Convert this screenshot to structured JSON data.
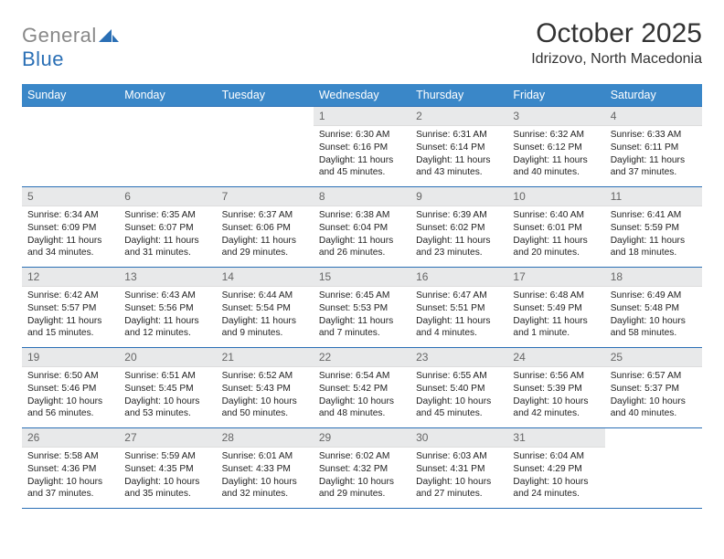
{
  "brand": {
    "word1": "General",
    "word2": "Blue"
  },
  "title": "October 2025",
  "location": "Idrizovo, North Macedonia",
  "colors": {
    "header_bg": "#3a87c8",
    "header_text": "#ffffff",
    "border": "#2a6fb5",
    "daynum_bg": "#e8e9ea",
    "daynum_text": "#666666",
    "body_text": "#222222",
    "logo_gray": "#888888",
    "logo_blue": "#2a6fb5"
  },
  "weekdays": [
    "Sunday",
    "Monday",
    "Tuesday",
    "Wednesday",
    "Thursday",
    "Friday",
    "Saturday"
  ],
  "weeks": [
    [
      {
        "n": "",
        "sr": "",
        "ss": "",
        "dl": ""
      },
      {
        "n": "",
        "sr": "",
        "ss": "",
        "dl": ""
      },
      {
        "n": "",
        "sr": "",
        "ss": "",
        "dl": ""
      },
      {
        "n": "1",
        "sr": "Sunrise: 6:30 AM",
        "ss": "Sunset: 6:16 PM",
        "dl": "Daylight: 11 hours and 45 minutes."
      },
      {
        "n": "2",
        "sr": "Sunrise: 6:31 AM",
        "ss": "Sunset: 6:14 PM",
        "dl": "Daylight: 11 hours and 43 minutes."
      },
      {
        "n": "3",
        "sr": "Sunrise: 6:32 AM",
        "ss": "Sunset: 6:12 PM",
        "dl": "Daylight: 11 hours and 40 minutes."
      },
      {
        "n": "4",
        "sr": "Sunrise: 6:33 AM",
        "ss": "Sunset: 6:11 PM",
        "dl": "Daylight: 11 hours and 37 minutes."
      }
    ],
    [
      {
        "n": "5",
        "sr": "Sunrise: 6:34 AM",
        "ss": "Sunset: 6:09 PM",
        "dl": "Daylight: 11 hours and 34 minutes."
      },
      {
        "n": "6",
        "sr": "Sunrise: 6:35 AM",
        "ss": "Sunset: 6:07 PM",
        "dl": "Daylight: 11 hours and 31 minutes."
      },
      {
        "n": "7",
        "sr": "Sunrise: 6:37 AM",
        "ss": "Sunset: 6:06 PM",
        "dl": "Daylight: 11 hours and 29 minutes."
      },
      {
        "n": "8",
        "sr": "Sunrise: 6:38 AM",
        "ss": "Sunset: 6:04 PM",
        "dl": "Daylight: 11 hours and 26 minutes."
      },
      {
        "n": "9",
        "sr": "Sunrise: 6:39 AM",
        "ss": "Sunset: 6:02 PM",
        "dl": "Daylight: 11 hours and 23 minutes."
      },
      {
        "n": "10",
        "sr": "Sunrise: 6:40 AM",
        "ss": "Sunset: 6:01 PM",
        "dl": "Daylight: 11 hours and 20 minutes."
      },
      {
        "n": "11",
        "sr": "Sunrise: 6:41 AM",
        "ss": "Sunset: 5:59 PM",
        "dl": "Daylight: 11 hours and 18 minutes."
      }
    ],
    [
      {
        "n": "12",
        "sr": "Sunrise: 6:42 AM",
        "ss": "Sunset: 5:57 PM",
        "dl": "Daylight: 11 hours and 15 minutes."
      },
      {
        "n": "13",
        "sr": "Sunrise: 6:43 AM",
        "ss": "Sunset: 5:56 PM",
        "dl": "Daylight: 11 hours and 12 minutes."
      },
      {
        "n": "14",
        "sr": "Sunrise: 6:44 AM",
        "ss": "Sunset: 5:54 PM",
        "dl": "Daylight: 11 hours and 9 minutes."
      },
      {
        "n": "15",
        "sr": "Sunrise: 6:45 AM",
        "ss": "Sunset: 5:53 PM",
        "dl": "Daylight: 11 hours and 7 minutes."
      },
      {
        "n": "16",
        "sr": "Sunrise: 6:47 AM",
        "ss": "Sunset: 5:51 PM",
        "dl": "Daylight: 11 hours and 4 minutes."
      },
      {
        "n": "17",
        "sr": "Sunrise: 6:48 AM",
        "ss": "Sunset: 5:49 PM",
        "dl": "Daylight: 11 hours and 1 minute."
      },
      {
        "n": "18",
        "sr": "Sunrise: 6:49 AM",
        "ss": "Sunset: 5:48 PM",
        "dl": "Daylight: 10 hours and 58 minutes."
      }
    ],
    [
      {
        "n": "19",
        "sr": "Sunrise: 6:50 AM",
        "ss": "Sunset: 5:46 PM",
        "dl": "Daylight: 10 hours and 56 minutes."
      },
      {
        "n": "20",
        "sr": "Sunrise: 6:51 AM",
        "ss": "Sunset: 5:45 PM",
        "dl": "Daylight: 10 hours and 53 minutes."
      },
      {
        "n": "21",
        "sr": "Sunrise: 6:52 AM",
        "ss": "Sunset: 5:43 PM",
        "dl": "Daylight: 10 hours and 50 minutes."
      },
      {
        "n": "22",
        "sr": "Sunrise: 6:54 AM",
        "ss": "Sunset: 5:42 PM",
        "dl": "Daylight: 10 hours and 48 minutes."
      },
      {
        "n": "23",
        "sr": "Sunrise: 6:55 AM",
        "ss": "Sunset: 5:40 PM",
        "dl": "Daylight: 10 hours and 45 minutes."
      },
      {
        "n": "24",
        "sr": "Sunrise: 6:56 AM",
        "ss": "Sunset: 5:39 PM",
        "dl": "Daylight: 10 hours and 42 minutes."
      },
      {
        "n": "25",
        "sr": "Sunrise: 6:57 AM",
        "ss": "Sunset: 5:37 PM",
        "dl": "Daylight: 10 hours and 40 minutes."
      }
    ],
    [
      {
        "n": "26",
        "sr": "Sunrise: 5:58 AM",
        "ss": "Sunset: 4:36 PM",
        "dl": "Daylight: 10 hours and 37 minutes."
      },
      {
        "n": "27",
        "sr": "Sunrise: 5:59 AM",
        "ss": "Sunset: 4:35 PM",
        "dl": "Daylight: 10 hours and 35 minutes."
      },
      {
        "n": "28",
        "sr": "Sunrise: 6:01 AM",
        "ss": "Sunset: 4:33 PM",
        "dl": "Daylight: 10 hours and 32 minutes."
      },
      {
        "n": "29",
        "sr": "Sunrise: 6:02 AM",
        "ss": "Sunset: 4:32 PM",
        "dl": "Daylight: 10 hours and 29 minutes."
      },
      {
        "n": "30",
        "sr": "Sunrise: 6:03 AM",
        "ss": "Sunset: 4:31 PM",
        "dl": "Daylight: 10 hours and 27 minutes."
      },
      {
        "n": "31",
        "sr": "Sunrise: 6:04 AM",
        "ss": "Sunset: 4:29 PM",
        "dl": "Daylight: 10 hours and 24 minutes."
      },
      {
        "n": "",
        "sr": "",
        "ss": "",
        "dl": ""
      }
    ]
  ]
}
